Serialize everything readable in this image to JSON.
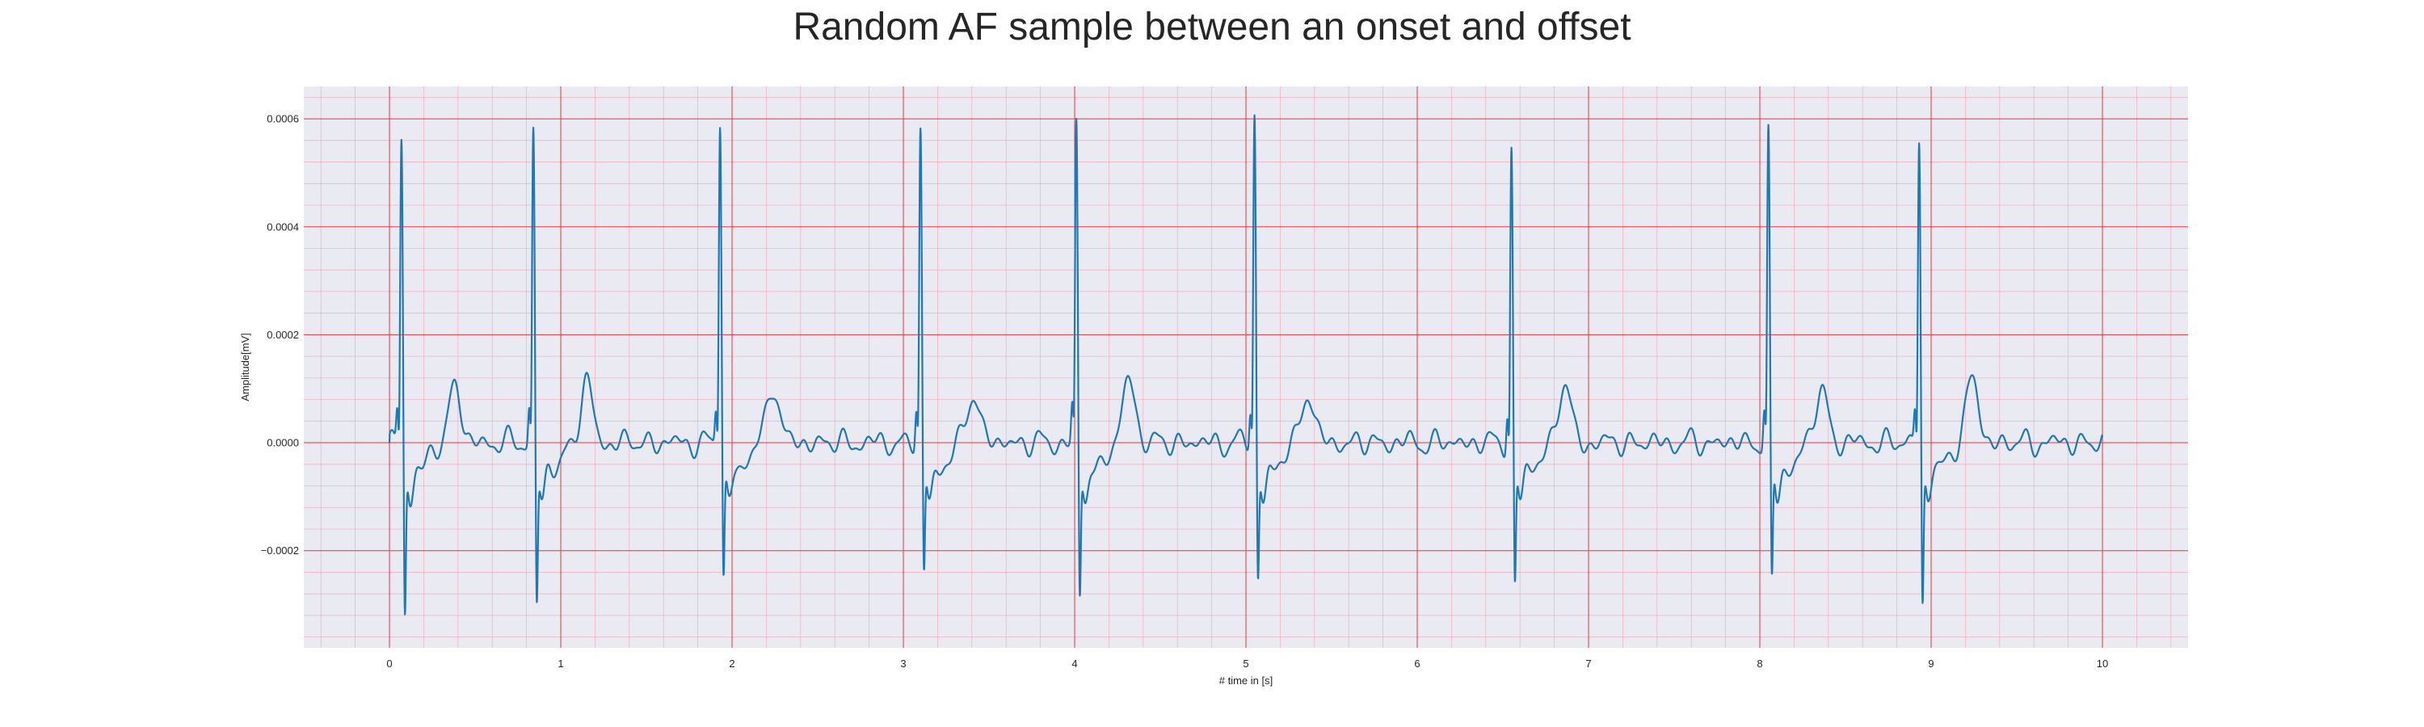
{
  "chart_data": {
    "type": "line",
    "title": "Random AF sample between an onset and offset",
    "xlabel": "# time in [s]",
    "ylabel": "Amplitude[mV]",
    "xlim": [
      -0.5,
      10.5
    ],
    "ylim": [
      -0.00038,
      0.00066
    ],
    "x_ticks": [
      0,
      1,
      2,
      3,
      4,
      5,
      6,
      7,
      8,
      9,
      10
    ],
    "x_tick_labels": [
      "0",
      "1",
      "2",
      "3",
      "4",
      "5",
      "6",
      "7",
      "8",
      "9",
      "10"
    ],
    "y_ticks": [
      -0.0002,
      0,
      0.0002,
      0.0004,
      0.0006
    ],
    "y_tick_labels": [
      "−0.0002",
      "0.0000",
      "0.0002",
      "0.0004",
      "0.0006"
    ],
    "grid": true,
    "minor_grid": true,
    "colors": {
      "line": "#1f77b4",
      "plot_background": "#eaeaf2",
      "major_grid": "#e8343a",
      "minor_grid": "#f4a0b0"
    },
    "series": [
      {
        "beats": [
          {
            "t": 0.07,
            "peak": 0.00058,
            "trough": -0.00033,
            "t_amp": 0.000105
          },
          {
            "t": 0.84,
            "peak": 0.000585,
            "trough": -0.00031,
            "t_amp": 0.00011
          },
          {
            "t": 1.93,
            "peak": 0.00061,
            "trough": -0.00026,
            "t_amp": 0.00011
          },
          {
            "t": 3.1,
            "peak": 0.00058,
            "trough": -0.000255,
            "t_amp": 9.5e-05
          },
          {
            "t": 4.01,
            "peak": 0.000595,
            "trough": -0.0003,
            "t_amp": 0.00012
          },
          {
            "t": 5.05,
            "peak": 0.000615,
            "trough": -0.000265,
            "t_amp": 9.5e-05
          },
          {
            "t": 6.55,
            "peak": 0.00055,
            "trough": -0.00028,
            "t_amp": 0.00011
          },
          {
            "t": 8.05,
            "peak": 0.000575,
            "trough": -0.00028,
            "t_amp": 0.0001
          },
          {
            "t": 8.93,
            "peak": 0.00058,
            "trough": -0.00031,
            "t_amp": 0.00012
          }
        ],
        "start": {
          "t": 0.0,
          "value": 0.0
        },
        "end": {
          "t": 10.0,
          "value": 1e-05
        }
      }
    ]
  }
}
